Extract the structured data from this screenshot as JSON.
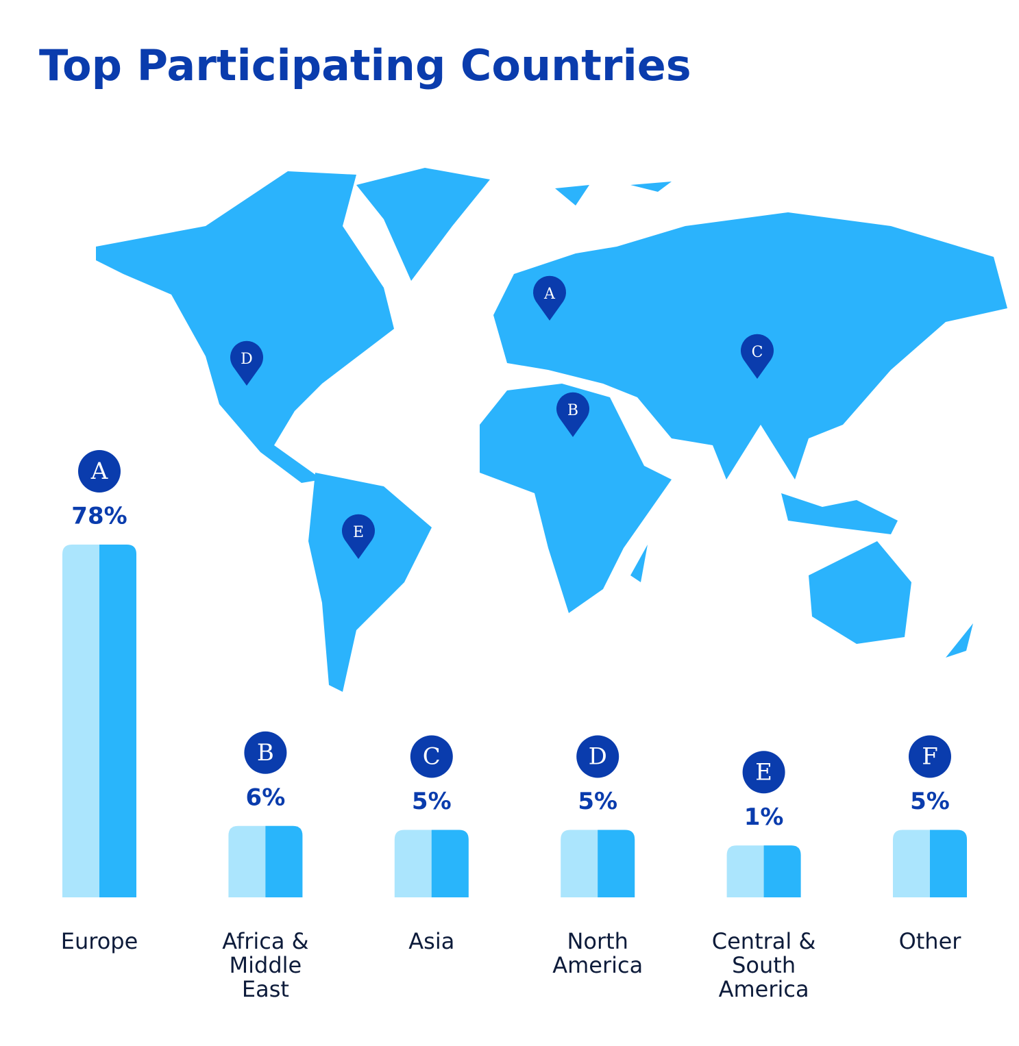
{
  "chart_data": {
    "type": "bar",
    "title": "Top Participating Countries",
    "categories": [
      "Europe",
      "Africa & Middle East",
      "Asia",
      "North America",
      "Central & South America",
      "Other"
    ],
    "letters": [
      "A",
      "B",
      "C",
      "D",
      "E",
      "F"
    ],
    "values": [
      78,
      6,
      5,
      5,
      1,
      5
    ],
    "value_labels": [
      "78%",
      "6%",
      "5%",
      "5%",
      "1%",
      "5%"
    ],
    "color": "#29b5fb",
    "highlight_color": "#abe5fd",
    "accent_color": "#0a3cad"
  }
}
